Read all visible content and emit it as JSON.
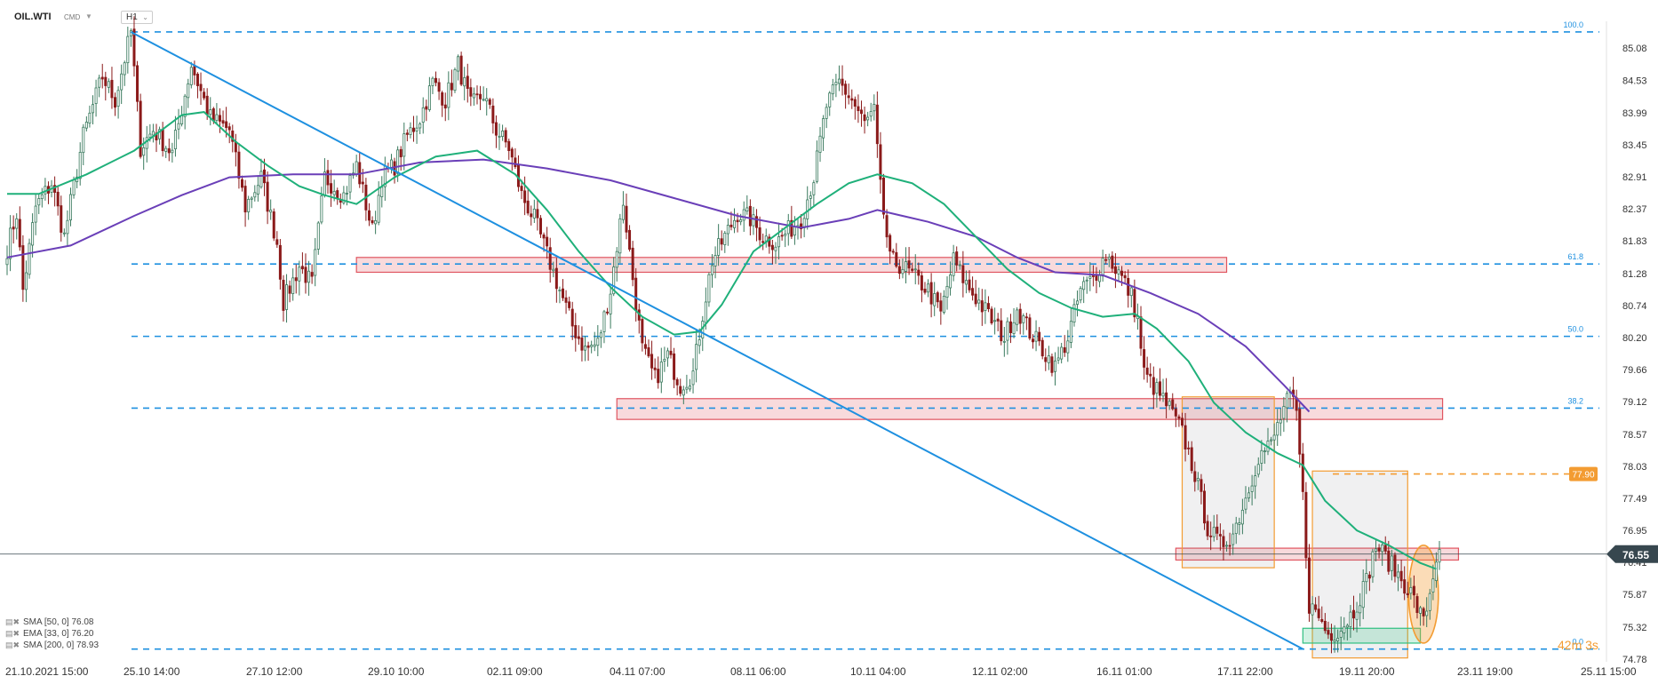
{
  "header": {
    "symbol": "OIL.WTI",
    "market": "CMD",
    "timeframe": "H1"
  },
  "indicators": [
    {
      "label": "SMA [50, 0] 76.08"
    },
    {
      "label": "EMA [33, 0] 76.20"
    },
    {
      "label": "SMA [200, 0] 78.93"
    }
  ],
  "timer": "42m 3s",
  "colors": {
    "up": "#3a7a5e",
    "down": "#8b1a1a",
    "sma50": "#1fb07a",
    "sma200": "#6a3fb8",
    "trend": "#1e90e0",
    "fib": "#1e90e0",
    "zone_red": "#e05560",
    "zone_orange": "#f39c32",
    "zone_green": "#2fbf80",
    "current": "#37474f"
  },
  "chart_data": {
    "type": "candlestick",
    "y_ticks": [
      "85.08",
      "84.53",
      "83.99",
      "83.45",
      "82.91",
      "82.37",
      "81.83",
      "81.28",
      "80.74",
      "80.20",
      "79.66",
      "79.12",
      "78.57",
      "78.03",
      "77.49",
      "76.95",
      "76.41",
      "75.87",
      "75.32",
      "74.78"
    ],
    "x_ticks": [
      "21.10.2021 15:00",
      "25.10 14:00",
      "27.10 12:00",
      "29.10 10:00",
      "02.11 09:00",
      "04.11 07:00",
      "08.11 06:00",
      "10.11 04:00",
      "12.11 02:00",
      "16.11 01:00",
      "17.11 22:00",
      "19.11 20:00",
      "23.11 19:00",
      "25.11 15:00"
    ],
    "ylim": [
      74.78,
      85.08
    ],
    "current_price": "76.55",
    "target_price": "77.90",
    "fib_levels": [
      {
        "label": "100.0",
        "value": 85.35
      },
      {
        "label": "61.8",
        "value": 81.44
      },
      {
        "label": "50.0",
        "value": 80.22
      },
      {
        "label": "38.2",
        "value": 79.01
      },
      {
        "label": "0.0",
        "value": 74.95
      }
    ],
    "key_points": [
      [
        0,
        81.7
      ],
      [
        3,
        82.3
      ],
      [
        5,
        81.0
      ],
      [
        9,
        82.4
      ],
      [
        14,
        82.8
      ],
      [
        18,
        81.9
      ],
      [
        24,
        83.6
      ],
      [
        30,
        84.6
      ],
      [
        34,
        84.2
      ],
      [
        37,
        84.9
      ],
      [
        39,
        85.35
      ],
      [
        42,
        83.4
      ],
      [
        46,
        83.7
      ],
      [
        52,
        83.3
      ],
      [
        58,
        84.8
      ],
      [
        64,
        83.9
      ],
      [
        70,
        83.7
      ],
      [
        75,
        82.4
      ],
      [
        80,
        82.9
      ],
      [
        85,
        81.8
      ],
      [
        87,
        80.8
      ],
      [
        92,
        81.4
      ],
      [
        96,
        81.1
      ],
      [
        100,
        82.9
      ],
      [
        106,
        82.6
      ],
      [
        110,
        83.1
      ],
      [
        115,
        82.0
      ],
      [
        118,
        82.9
      ],
      [
        122,
        83.1
      ],
      [
        126,
        83.6
      ],
      [
        130,
        83.9
      ],
      [
        134,
        84.5
      ],
      [
        138,
        84.2
      ],
      [
        142,
        84.8
      ],
      [
        146,
        84.1
      ],
      [
        150,
        84.3
      ],
      [
        154,
        83.7
      ],
      [
        158,
        83.4
      ],
      [
        162,
        82.6
      ],
      [
        166,
        82.2
      ],
      [
        170,
        81.6
      ],
      [
        174,
        81.0
      ],
      [
        178,
        80.4
      ],
      [
        182,
        80.0
      ],
      [
        186,
        80.1
      ],
      [
        190,
        81.0
      ],
      [
        194,
        82.5
      ],
      [
        197,
        81.2
      ],
      [
        200,
        80.0
      ],
      [
        204,
        79.5
      ],
      [
        208,
        79.9
      ],
      [
        212,
        79.4
      ],
      [
        216,
        79.6
      ],
      [
        219,
        80.6
      ],
      [
        222,
        81.5
      ],
      [
        226,
        81.9
      ],
      [
        230,
        82.3
      ],
      [
        234,
        82.2
      ],
      [
        238,
        81.9
      ],
      [
        242,
        81.8
      ],
      [
        246,
        82.0
      ],
      [
        250,
        82.2
      ],
      [
        254,
        82.9
      ],
      [
        258,
        84.1
      ],
      [
        262,
        84.5
      ],
      [
        266,
        84.2
      ],
      [
        270,
        83.8
      ],
      [
        273,
        84.0
      ],
      [
        275,
        82.7
      ],
      [
        278,
        81.5
      ],
      [
        282,
        81.4
      ],
      [
        286,
        81.2
      ],
      [
        290,
        81.0
      ],
      [
        294,
        80.6
      ],
      [
        298,
        81.5
      ],
      [
        302,
        81.1
      ],
      [
        306,
        80.8
      ],
      [
        310,
        80.5
      ],
      [
        314,
        80.2
      ],
      [
        318,
        80.7
      ],
      [
        322,
        80.3
      ],
      [
        326,
        80.0
      ],
      [
        330,
        79.7
      ],
      [
        334,
        80.2
      ],
      [
        338,
        81.0
      ],
      [
        342,
        81.2
      ],
      [
        346,
        81.6
      ],
      [
        350,
        81.3
      ],
      [
        354,
        80.9
      ],
      [
        356,
        80.5
      ],
      [
        358,
        79.6
      ],
      [
        362,
        79.3
      ],
      [
        366,
        79.0
      ],
      [
        370,
        78.6
      ],
      [
        374,
        77.9
      ],
      [
        378,
        77.0
      ],
      [
        382,
        76.7
      ],
      [
        386,
        76.9
      ],
      [
        390,
        77.5
      ],
      [
        394,
        78.2
      ],
      [
        398,
        78.4
      ],
      [
        402,
        79.0
      ],
      [
        404,
        79.2
      ],
      [
        406,
        78.9
      ],
      [
        408,
        77.5
      ],
      [
        410,
        75.7
      ],
      [
        413,
        75.5
      ],
      [
        416,
        75.2
      ],
      [
        420,
        75.3
      ],
      [
        424,
        75.6
      ],
      [
        428,
        76.1
      ],
      [
        431,
        76.7
      ],
      [
        434,
        76.5
      ],
      [
        438,
        76.2
      ],
      [
        442,
        75.9
      ],
      [
        446,
        75.4
      ],
      [
        448,
        75.9
      ],
      [
        450,
        76.5
      ]
    ],
    "sma50_points": [
      [
        0,
        82.62
      ],
      [
        10,
        82.62
      ],
      [
        25,
        82.95
      ],
      [
        40,
        83.35
      ],
      [
        55,
        83.95
      ],
      [
        62,
        84.0
      ],
      [
        72,
        83.5
      ],
      [
        82,
        83.1
      ],
      [
        92,
        82.75
      ],
      [
        100,
        82.6
      ],
      [
        110,
        82.45
      ],
      [
        122,
        82.9
      ],
      [
        135,
        83.25
      ],
      [
        148,
        83.35
      ],
      [
        160,
        82.95
      ],
      [
        170,
        82.35
      ],
      [
        180,
        81.65
      ],
      [
        190,
        81.05
      ],
      [
        200,
        80.55
      ],
      [
        210,
        80.25
      ],
      [
        218,
        80.3
      ],
      [
        225,
        80.75
      ],
      [
        235,
        81.65
      ],
      [
        245,
        82.05
      ],
      [
        255,
        82.45
      ],
      [
        265,
        82.8
      ],
      [
        274,
        82.95
      ],
      [
        285,
        82.8
      ],
      [
        295,
        82.45
      ],
      [
        305,
        81.9
      ],
      [
        315,
        81.35
      ],
      [
        325,
        80.95
      ],
      [
        335,
        80.7
      ],
      [
        345,
        80.55
      ],
      [
        355,
        80.6
      ],
      [
        362,
        80.35
      ],
      [
        372,
        79.8
      ],
      [
        380,
        79.1
      ],
      [
        390,
        78.6
      ],
      [
        400,
        78.25
      ],
      [
        408,
        78.05
      ],
      [
        415,
        77.45
      ],
      [
        425,
        76.95
      ],
      [
        435,
        76.7
      ],
      [
        445,
        76.4
      ],
      [
        450,
        76.3
      ]
    ],
    "sma200_points": [
      [
        0,
        81.55
      ],
      [
        20,
        81.75
      ],
      [
        40,
        82.25
      ],
      [
        55,
        82.6
      ],
      [
        70,
        82.9
      ],
      [
        90,
        82.95
      ],
      [
        110,
        82.95
      ],
      [
        130,
        83.15
      ],
      [
        150,
        83.2
      ],
      [
        170,
        83.05
      ],
      [
        190,
        82.85
      ],
      [
        210,
        82.55
      ],
      [
        230,
        82.25
      ],
      [
        250,
        82.05
      ],
      [
        265,
        82.2
      ],
      [
        274,
        82.35
      ],
      [
        290,
        82.15
      ],
      [
        305,
        81.9
      ],
      [
        318,
        81.55
      ],
      [
        330,
        81.3
      ],
      [
        345,
        81.25
      ],
      [
        360,
        80.95
      ],
      [
        375,
        80.6
      ],
      [
        390,
        80.05
      ],
      [
        402,
        79.4
      ],
      [
        410,
        78.95
      ]
    ],
    "trendline": [
      [
        39,
        85.35
      ],
      [
        408,
        74.95
      ]
    ],
    "zones": [
      {
        "kind": "red",
        "x": [
          110,
          384
        ],
        "y": [
          81.3,
          81.55
        ]
      },
      {
        "kind": "red",
        "x": [
          192,
          452
        ],
        "y": [
          78.82,
          79.17
        ]
      },
      {
        "kind": "red",
        "x": [
          368,
          457
        ],
        "y": [
          76.45,
          76.65
        ]
      },
      {
        "kind": "gray",
        "x": [
          370,
          399
        ],
        "y": [
          76.32,
          79.2
        ]
      },
      {
        "kind": "gray",
        "x": [
          411,
          441
        ],
        "y": [
          74.8,
          77.95
        ]
      },
      {
        "kind": "green",
        "x": [
          408,
          445
        ],
        "y": [
          75.05,
          75.3
        ]
      },
      {
        "kind": "ellipse",
        "x": [
          443,
          449
        ],
        "y": [
          75.05,
          76.7
        ]
      }
    ]
  }
}
